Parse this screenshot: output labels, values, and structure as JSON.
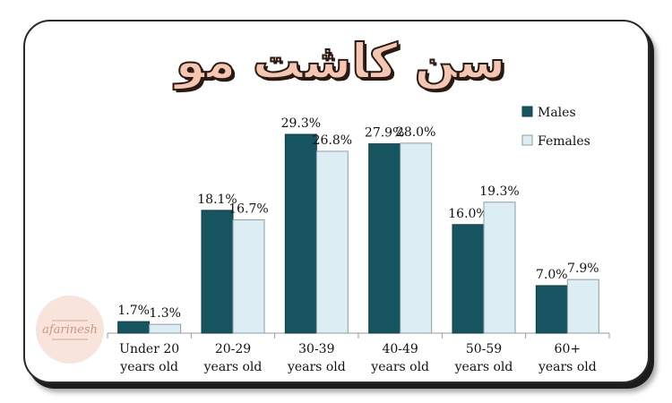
{
  "title": "سن کاشت مو",
  "logo": {
    "text": "afarinesh"
  },
  "colors": {
    "males": "#16545f",
    "females": "#dceef4",
    "axis": "#999999"
  },
  "chart_data": {
    "type": "bar",
    "categories": [
      [
        "Under 20",
        "years old"
      ],
      [
        "20-29",
        "years old"
      ],
      [
        "30-39",
        "years old"
      ],
      [
        "40-49",
        "years old"
      ],
      [
        "50-59",
        "years old"
      ],
      [
        "60+",
        "years old"
      ]
    ],
    "series": [
      {
        "name": "Males",
        "values": [
          1.7,
          18.1,
          29.3,
          27.9,
          16.0,
          7.0
        ],
        "labels": [
          "1.7%",
          "18.1%",
          "29.3%",
          "27.9%",
          "16.0%",
          "7.0%"
        ]
      },
      {
        "name": "Females",
        "values": [
          1.3,
          16.7,
          26.8,
          28.0,
          19.3,
          7.9
        ],
        "labels": [
          "1.3%",
          "16.7%",
          "26.8%",
          "28.0%",
          "19.3%",
          "7.9%"
        ]
      }
    ],
    "ylim": [
      0,
      30
    ],
    "grid": false,
    "legend": "top-right"
  }
}
